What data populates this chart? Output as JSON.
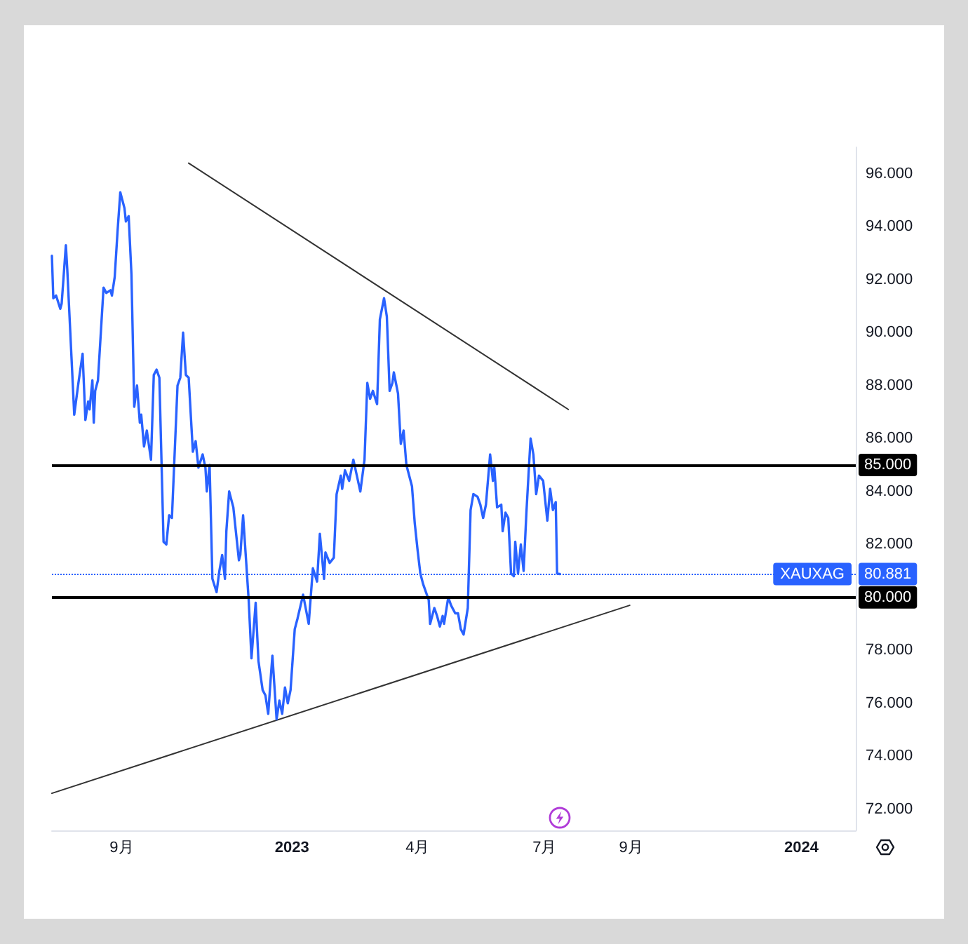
{
  "chart_data": {
    "type": "line",
    "x": [
      "2022-07-13",
      "2022-07-14",
      "2022-07-16",
      "2022-07-19",
      "2022-07-20",
      "2022-07-23",
      "2022-07-24",
      "2022-07-29",
      "2022-08-01",
      "2022-08-04",
      "2022-08-06",
      "2022-08-08",
      "2022-08-09",
      "2022-08-11",
      "2022-08-12",
      "2022-08-13",
      "2022-08-15",
      "2022-08-19",
      "2022-08-21",
      "2022-08-24",
      "2022-08-25",
      "2022-08-27",
      "2022-08-29",
      "2022-08-31",
      "2022-09-03",
      "2022-09-04",
      "2022-09-06",
      "2022-09-08",
      "2022-09-10",
      "2022-09-12",
      "2022-09-14",
      "2022-09-15",
      "2022-09-17",
      "2022-09-19",
      "2022-09-22",
      "2022-09-24",
      "2022-09-26",
      "2022-09-28",
      "2022-10-01",
      "2022-10-03",
      "2022-10-05",
      "2022-10-07",
      "2022-10-11",
      "2022-10-13",
      "2022-10-15",
      "2022-10-17",
      "2022-10-19",
      "2022-10-22",
      "2022-10-24",
      "2022-10-26",
      "2022-10-29",
      "2022-10-31",
      "2022-11-01",
      "2022-11-03",
      "2022-11-05",
      "2022-11-08",
      "2022-11-10",
      "2022-11-12",
      "2022-11-14",
      "2022-11-15",
      "2022-11-17",
      "2022-11-20",
      "2022-11-22",
      "2022-11-24",
      "2022-11-25",
      "2022-11-27",
      "2022-12-01",
      "2022-12-03",
      "2022-12-06",
      "2022-12-08",
      "2022-12-11",
      "2022-12-13",
      "2022-12-15",
      "2022-12-17",
      "2022-12-18",
      "2022-12-21",
      "2022-12-23",
      "2022-12-25",
      "2022-12-27",
      "2022-12-29",
      "2022-12-31",
      "2023-01-03",
      "2023-01-05",
      "2023-01-09",
      "2023-01-13",
      "2023-01-16",
      "2023-01-19",
      "2023-01-21",
      "2023-01-24",
      "2023-01-25",
      "2023-01-28",
      "2023-01-31",
      "2023-02-02",
      "2023-02-05",
      "2023-02-06",
      "2023-02-08",
      "2023-02-11",
      "2023-02-14",
      "2023-02-19",
      "2023-02-22",
      "2023-02-24",
      "2023-02-26",
      "2023-02-28",
      "2023-03-03",
      "2023-03-05",
      "2023-03-08",
      "2023-03-10",
      "2023-03-12",
      "2023-03-14",
      "2023-03-15",
      "2023-03-18",
      "2023-03-20",
      "2023-03-22",
      "2023-03-24",
      "2023-03-28",
      "2023-03-30",
      "2023-04-01",
      "2023-04-03",
      "2023-04-05",
      "2023-04-09",
      "2023-04-10",
      "2023-04-13",
      "2023-04-15",
      "2023-04-17",
      "2023-04-19",
      "2023-04-20",
      "2023-04-23",
      "2023-04-25",
      "2023-04-28",
      "2023-04-30",
      "2023-05-02",
      "2023-05-04",
      "2023-05-07",
      "2023-05-09",
      "2023-05-11",
      "2023-05-14",
      "2023-05-16",
      "2023-05-18",
      "2023-05-20",
      "2023-05-23",
      "2023-05-25",
      "2023-05-26",
      "2023-05-28",
      "2023-05-31",
      "2023-06-01",
      "2023-06-03",
      "2023-06-05",
      "2023-06-07",
      "2023-06-09",
      "2023-06-10",
      "2023-06-12",
      "2023-06-14",
      "2023-06-16",
      "2023-06-18",
      "2023-06-20",
      "2023-06-21",
      "2023-06-23",
      "2023-06-25",
      "2023-06-27",
      "2023-06-30",
      "2023-07-01",
      "2023-07-03",
      "2023-07-05",
      "2023-07-07",
      "2023-07-09",
      "2023-07-10",
      "2023-07-12"
    ],
    "xlim": [
      "2022-07-13",
      "2024-02-09"
    ],
    "xticks": [
      {
        "value": "2022-09-01",
        "label": "9月"
      },
      {
        "value": "2023-01-01",
        "label": "2023"
      },
      {
        "value": "2023-04-01",
        "label": "4月"
      },
      {
        "value": "2023-07-01",
        "label": "7月"
      },
      {
        "value": "2023-09-01",
        "label": "9月"
      },
      {
        "value": "2024-01-01",
        "label": "2024"
      }
    ],
    "ylim": [
      71.2,
      97
    ],
    "yticks": [
      {
        "value": 72,
        "label": "72.000"
      },
      {
        "value": 74,
        "label": "74.000"
      },
      {
        "value": 76,
        "label": "76.000"
      },
      {
        "value": 78,
        "label": "78.000"
      },
      {
        "value": 80,
        "label": "80.000"
      },
      {
        "value": 82,
        "label": "82.000"
      },
      {
        "value": 84,
        "label": "84.000"
      },
      {
        "value": 86,
        "label": "86.000"
      },
      {
        "value": 88,
        "label": "88.000"
      },
      {
        "value": 90,
        "label": "90.000"
      },
      {
        "value": 92,
        "label": "92.000"
      },
      {
        "value": 94,
        "label": "94.000"
      },
      {
        "value": 96,
        "label": "96.000"
      }
    ],
    "series": [
      {
        "name": "XAUXAG",
        "color": "#2962ff",
        "values": [
          92.9,
          91.3,
          91.4,
          90.9,
          91.1,
          93.3,
          92.4,
          86.9,
          88.1,
          89.2,
          86.7,
          87.4,
          87.1,
          88.2,
          86.6,
          87.8,
          88.2,
          91.7,
          91.5,
          91.6,
          91.4,
          92.1,
          93.8,
          95.3,
          94.7,
          94.2,
          94.4,
          92.2,
          87.2,
          88.0,
          86.6,
          86.9,
          85.7,
          86.3,
          85.2,
          88.4,
          88.6,
          88.3,
          82.1,
          82.0,
          83.1,
          83.0,
          88.0,
          88.3,
          90.0,
          88.4,
          88.3,
          85.5,
          85.9,
          84.9,
          85.4,
          84.9,
          84.0,
          85.0,
          80.7,
          80.2,
          81.0,
          81.6,
          80.7,
          82.5,
          84.0,
          83.4,
          82.4,
          81.4,
          81.6,
          83.1,
          79.9,
          77.7,
          79.8,
          77.6,
          76.5,
          76.3,
          75.6,
          77.1,
          77.8,
          75.4,
          76.1,
          75.6,
          76.6,
          76.0,
          76.5,
          78.8,
          79.2,
          80.1,
          79.0,
          81.1,
          80.6,
          82.4,
          80.7,
          81.7,
          81.3,
          81.5,
          83.9,
          84.6,
          84.1,
          84.8,
          84.4,
          85.2,
          84.0,
          85.2,
          88.1,
          87.5,
          87.8,
          87.3,
          90.5,
          91.3,
          90.6,
          87.8,
          88.1,
          88.5,
          87.7,
          85.8,
          86.3,
          85.0,
          84.2,
          82.8,
          81.8,
          80.9,
          80.5,
          79.9,
          79.0,
          79.6,
          79.3,
          78.9,
          79.3,
          79.0,
          80.0,
          79.7,
          79.4,
          79.4,
          78.8,
          78.6,
          79.6,
          83.3,
          83.9,
          83.8,
          83.5,
          83.0,
          83.5,
          85.4,
          84.4,
          84.9,
          83.4,
          83.5,
          82.5,
          83.2,
          83.0,
          80.9,
          80.8,
          82.1,
          80.9,
          82.0,
          81.0,
          83.2,
          85.1,
          86.0,
          85.4,
          83.9,
          84.6,
          84.4,
          83.9,
          82.9,
          84.1,
          83.3,
          83.6,
          80.9,
          80.881
        ]
      },
      {
        "color": "#333333",
        "x": [
          "2022-10-19",
          "2023-07-18"
        ],
        "values": [
          96.4,
          87.1
        ]
      },
      {
        "color": "#333333",
        "x": [
          "2022-07-13",
          "2023-08-31"
        ],
        "values": [
          72.6,
          79.7
        ]
      }
    ],
    "ref_lines": [
      {
        "axis": "y",
        "value": 85,
        "label": "85.000",
        "color": "#000000"
      },
      {
        "axis": "y",
        "value": 80,
        "label": "80.000",
        "color": "#000000"
      },
      {
        "axis": "y",
        "value": 80.881,
        "label": "80.881",
        "color": "#2962ff",
        "line_style": "dotted"
      }
    ]
  }
}
